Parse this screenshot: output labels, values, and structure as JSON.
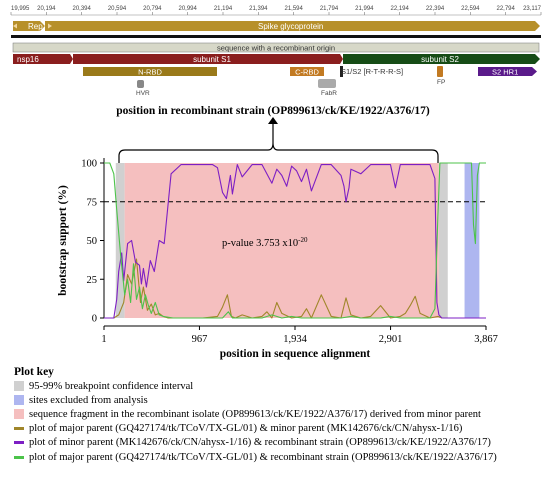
{
  "genome_map": {
    "ticks": [
      "19,995",
      "20,194",
      "20,394",
      "20,594",
      "20,794",
      "20,994",
      "21,194",
      "21,394",
      "21,594",
      "21,794",
      "21,994",
      "22,194",
      "22,394",
      "22,594",
      "22,794",
      "23,117"
    ],
    "rep1ab_label": "Rep1ab",
    "spike_label": "Spike glycoprotein",
    "recombinant_label": "sequence with a recombinant origin",
    "nsp16_label": "nsp16",
    "s1_label": "subunit S1",
    "s2_label": "subunit S2",
    "nrbd_label": "N-RBD",
    "crbd_label": "C-RBD",
    "cleavage_label": "S1/S2 [R-T-R-R-S]",
    "s2hr1_label": "S2 HR1",
    "hvr_label": "HVR",
    "fabr_label": "FabR",
    "fp_label": "FP"
  },
  "recombinant_position_title": "position in recombinant strain (OP899613/ck/KE/1922/A376/17)",
  "chart_data": {
    "type": "line",
    "xlabel": "position in sequence alignment",
    "ylabel": "bootstrap support (%)",
    "xlim": [
      1,
      3867
    ],
    "ylim": [
      0,
      100
    ],
    "x_ticks": [
      1,
      967,
      1934,
      2901,
      3867
    ],
    "x_tick_labels": [
      "1",
      "967",
      "1,934",
      "2,901",
      "3,867"
    ],
    "y_ticks": [
      0,
      25,
      50,
      75,
      100
    ],
    "threshold": 75,
    "annotation": "p-value 3.753 x10",
    "annotation_exp": "-20",
    "regions": [
      {
        "kind": "confidence",
        "x0": 120,
        "x1": 210
      },
      {
        "kind": "fragment",
        "x0": 210,
        "x1": 3390
      },
      {
        "kind": "confidence",
        "x0": 3390,
        "x1": 3480
      },
      {
        "kind": "excluded",
        "x0": 3650,
        "x1": 3800
      }
    ],
    "series": [
      {
        "name": "plot of major parent (GQ427174/tk/TCoV/TX-GL/01) & minor parent (MK142676/ck/CN/ahysx-1/16)",
        "color": "#a0862a",
        "x": [
          1,
          100,
          150,
          200,
          240,
          280,
          330,
          370,
          400,
          440,
          480,
          520,
          560,
          600,
          650,
          800,
          1000,
          1150,
          1200,
          1250,
          1290,
          1330,
          1400,
          1500,
          1600,
          1650,
          1700,
          1750,
          1800,
          1900,
          2000,
          2050,
          2100,
          2200,
          2300,
          2400,
          2450,
          2500,
          2600,
          2700,
          2800,
          2900,
          3000,
          3050,
          3100,
          3150,
          3200,
          3300,
          3380,
          3420,
          3460,
          3520,
          3867
        ],
        "y": [
          0,
          0,
          2,
          10,
          28,
          22,
          38,
          10,
          20,
          5,
          9,
          2,
          3,
          1,
          0,
          0,
          0,
          1,
          7,
          15,
          1,
          0,
          2,
          0,
          1,
          4,
          0,
          10,
          3,
          0,
          1,
          6,
          0,
          15,
          1,
          0,
          13,
          2,
          0,
          1,
          8,
          0,
          1,
          3,
          8,
          14,
          3,
          0,
          1,
          0,
          0,
          0,
          0
        ]
      },
      {
        "name": "plot of minor parent (MK142676/ck/CN/ahysx-1/16) & recombinant strain (OP899613/ck/KE/1922/A376/17)",
        "color": "#7d1fc4",
        "x": [
          1,
          100,
          130,
          150,
          180,
          200,
          240,
          280,
          320,
          360,
          380,
          400,
          430,
          470,
          510,
          560,
          610,
          680,
          780,
          900,
          1000,
          1100,
          1150,
          1200,
          1240,
          1280,
          1300,
          1350,
          1400,
          1500,
          1600,
          1700,
          1750,
          1800,
          1850,
          1900,
          1950,
          2000,
          2050,
          2100,
          2200,
          2300,
          2400,
          2430,
          2450,
          2480,
          2500,
          2600,
          2700,
          2800,
          2900,
          2950,
          3000,
          3100,
          3200,
          3300,
          3350,
          3370,
          3390,
          3420,
          3460,
          3520,
          3560,
          3580,
          3600,
          3620,
          3640,
          3660,
          3680,
          3700,
          3720,
          3740,
          3760,
          3780,
          3800,
          3867
        ],
        "y": [
          0,
          0,
          12,
          30,
          42,
          24,
          48,
          50,
          36,
          34,
          22,
          32,
          20,
          37,
          30,
          50,
          48,
          93,
          99,
          99,
          99,
          99,
          97,
          81,
          77,
          92,
          80,
          99,
          91,
          99,
          99,
          87,
          96,
          92,
          85,
          98,
          95,
          88,
          96,
          82,
          99,
          99,
          92,
          85,
          75,
          84,
          96,
          93,
          99,
          99,
          99,
          84,
          99,
          99,
          99,
          99,
          90,
          10,
          2,
          0,
          0,
          0,
          0,
          0,
          0,
          0,
          0,
          0,
          0,
          0,
          0,
          0,
          0,
          0,
          0,
          0
        ]
      },
      {
        "name": "plot of major parent (GQ427174/tk/TCoV/TX-GL/01) & recombinant strain (OP899613/ck/KE/1922/A376/17)",
        "color": "#4cc34a",
        "x": [
          1,
          60,
          100,
          130,
          170,
          210,
          240,
          270,
          300,
          330,
          360,
          390,
          420,
          450,
          480,
          520,
          560,
          600,
          700,
          800,
          1000,
          1200,
          1260,
          1300,
          1400,
          1600,
          1700,
          1800,
          1900,
          2000,
          2100,
          2200,
          2300,
          2400,
          2500,
          2600,
          2700,
          2800,
          2900,
          3000,
          3100,
          3200,
          3300,
          3350,
          3380,
          3400,
          3430,
          3460,
          3500,
          3560,
          3620,
          3670,
          3700,
          3720,
          3740,
          3760,
          3780,
          3800,
          3867
        ],
        "y": [
          100,
          100,
          93,
          70,
          40,
          15,
          25,
          10,
          35,
          12,
          20,
          6,
          15,
          8,
          3,
          10,
          2,
          1,
          0,
          0,
          0,
          0,
          4,
          0,
          0,
          0,
          2,
          0,
          1,
          0,
          0,
          0,
          0,
          0,
          1,
          0,
          0,
          0,
          1,
          0,
          0,
          0,
          0,
          6,
          66,
          100,
          100,
          100,
          100,
          100,
          100,
          100,
          100,
          100,
          60,
          48,
          92,
          100,
          100
        ]
      }
    ]
  },
  "plot_key": {
    "title": "Plot key",
    "items": [
      {
        "type": "swatch",
        "color": "#d0d0d0",
        "label": "95-99% breakpoint confidence interval"
      },
      {
        "type": "swatch",
        "color": "#aeb6f0",
        "label": "sites excluded from analysis"
      },
      {
        "type": "swatch",
        "color": "#f5bfbf",
        "label": "sequence fragment in the recombinant isolate (OP899613/ck/KE/1922/A376/17) derived from minor parent"
      },
      {
        "type": "line",
        "color": "#a0862a",
        "label": "plot of major parent (GQ427174/tk/TCoV/TX-GL/01) & minor parent (MK142676/ck/CN/ahysx-1/16)"
      },
      {
        "type": "line",
        "color": "#7d1fc4",
        "label": "plot of minor parent (MK142676/ck/CN/ahysx-1/16) & recombinant strain (OP899613/ck/KE/1922/A376/17)"
      },
      {
        "type": "line",
        "color": "#4cc34a",
        "label": "plot of major parent (GQ427174/tk/TCoV/TX-GL/01) & recombinant strain (OP899613/ck/KE/1922/A376/17)"
      }
    ]
  }
}
